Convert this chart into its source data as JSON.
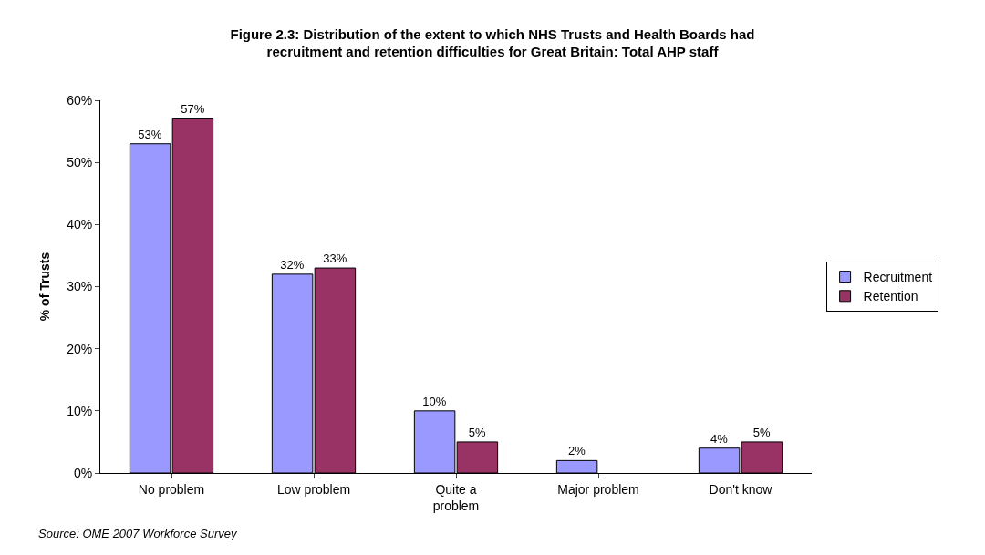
{
  "chart_data": {
    "type": "bar",
    "title": "Figure 2.3: Distribution of the extent to which NHS Trusts and Health Boards had recruitment and retention difficulties for Great Britain: Total AHP staff",
    "ylabel": "% of Trusts",
    "categories": [
      "No problem",
      "Low problem",
      "Quite a problem",
      "Major problem",
      "Don't know"
    ],
    "series": [
      {
        "name": "Recruitment",
        "color": "#9999ff",
        "values": [
          53,
          32,
          10,
          2,
          4
        ],
        "value_labels": [
          "53%",
          "32%",
          "10%",
          "2%",
          "4%"
        ]
      },
      {
        "name": "Retention",
        "color": "#993366",
        "values": [
          57,
          33,
          5,
          null,
          5
        ],
        "value_labels": [
          "57%",
          "33%",
          "5%",
          null,
          "5%"
        ]
      }
    ],
    "ylim": [
      0,
      60
    ],
    "yticks": [
      {
        "value": 0,
        "label": "0%"
      },
      {
        "value": 10,
        "label": "10%"
      },
      {
        "value": 20,
        "label": "20%"
      },
      {
        "value": 30,
        "label": "30%"
      },
      {
        "value": 40,
        "label": "40%"
      },
      {
        "value": 50,
        "label": "50%"
      },
      {
        "value": 60,
        "label": "60%"
      }
    ],
    "grid": false,
    "legend": "right",
    "annotations": [
      "Source: OME 2007 Workforce Survey"
    ]
  }
}
